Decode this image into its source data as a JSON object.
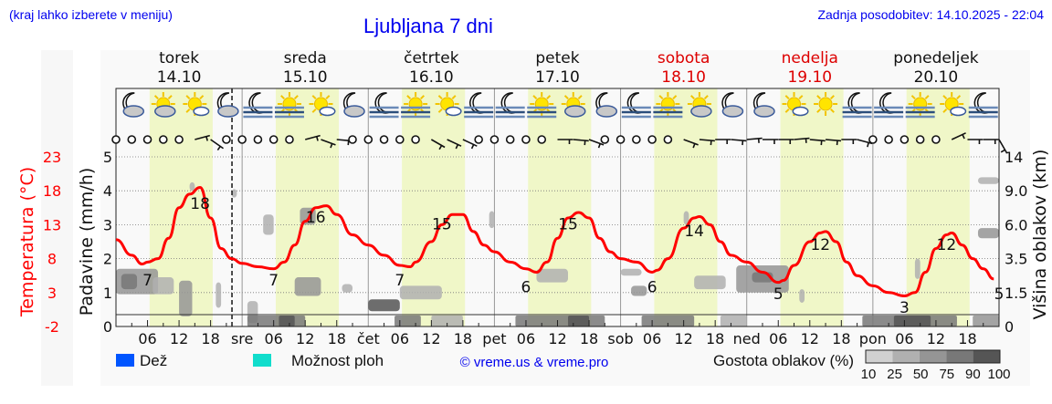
{
  "header": {
    "hint": "(kraj lahko izberete v meniju)",
    "title": "Ljubljana 7 dni",
    "updated": "Zadnja posodobitev: 14.10.2025 - 22:04"
  },
  "colors": {
    "temperature": "#ff0000",
    "daylight": "#f0f7c8",
    "rain": "#0055ff",
    "showers": "#11ddcc",
    "weekend": "#dd0000",
    "link": "#0000ee"
  },
  "legend": {
    "rain": "Dež",
    "showers": "Možnost ploh",
    "copyright": "© vreme.us & vreme.pro",
    "cloud_density_title": "Gostota oblakov (%)",
    "cloud_density_levels": [
      "10",
      "25",
      "50",
      "75",
      "90",
      "100"
    ],
    "cloud_density_colors": [
      "#d0d0d0",
      "#b0b0b0",
      "#959595",
      "#787878",
      "#555555"
    ]
  },
  "chart_data": {
    "type": "line",
    "days": [
      {
        "name": "torek",
        "date": "14.10",
        "weekend": false,
        "abbr": ""
      },
      {
        "name": "sreda",
        "date": "15.10",
        "weekend": false,
        "abbr": "sre"
      },
      {
        "name": "četrtek",
        "date": "16.10",
        "weekend": false,
        "abbr": "čet"
      },
      {
        "name": "petek",
        "date": "17.10",
        "weekend": false,
        "abbr": "pet"
      },
      {
        "name": "sobota",
        "date": "18.10",
        "weekend": true,
        "abbr": "sob"
      },
      {
        "name": "nedelja",
        "date": "19.10",
        "weekend": true,
        "abbr": "ned"
      },
      {
        "name": "ponedeljek",
        "date": "20.10",
        "weekend": false,
        "abbr": "pon"
      }
    ],
    "hour_ticks": [
      "06",
      "12",
      "18"
    ],
    "now_hour": 22.07,
    "left_axis_temperature": {
      "label": "Temperatura (°C)",
      "ticks": [
        "23",
        "18",
        "13",
        "8",
        "3",
        "-2"
      ],
      "range": [
        -2,
        23
      ]
    },
    "left_axis_precip": {
      "label": "Padavine (mm/h)",
      "ticks": [
        "5",
        "4",
        "3",
        "2",
        "1",
        "0"
      ],
      "range": [
        0,
        5
      ]
    },
    "right_axis_cloud": {
      "label": "Višina oblakov (km)",
      "ticks": [
        "14",
        "9.0",
        "6.0",
        "3.5",
        "1.5",
        "0"
      ]
    },
    "temperature_series": {
      "hours": [
        0,
        3,
        5,
        6,
        8,
        10,
        12,
        14,
        16,
        18,
        20,
        22,
        24,
        27,
        30,
        32,
        34,
        36,
        38,
        40,
        42,
        45,
        48,
        51,
        54,
        56,
        57,
        60,
        62,
        64,
        66,
        68,
        70,
        72,
        75,
        78,
        80,
        82,
        84,
        86,
        88,
        90,
        92,
        94,
        96,
        99,
        102,
        103,
        105,
        108,
        110,
        111,
        113,
        115,
        117,
        120,
        123,
        126,
        127,
        129,
        132,
        134,
        135,
        137,
        139,
        141,
        144,
        147,
        150,
        152,
        154,
        156,
        158,
        159,
        161,
        163,
        165,
        167
      ],
      "values": [
        10.8,
        8.5,
        7.2,
        7.5,
        8,
        11,
        15.5,
        17.5,
        18.5,
        14,
        9.5,
        8,
        7.3,
        6.8,
        6.5,
        7.5,
        10,
        13.5,
        15.5,
        15.8,
        14.5,
        11.5,
        10,
        8.5,
        7,
        6.8,
        7.5,
        10.5,
        13,
        14.5,
        14.5,
        12,
        10,
        9,
        7.5,
        6.5,
        6,
        7.5,
        11,
        14,
        14.8,
        14,
        11,
        9,
        8,
        7.5,
        6,
        6.3,
        8,
        12.5,
        14,
        14.2,
        13,
        10.5,
        8.5,
        7.5,
        6,
        4.5,
        4.8,
        7,
        10.5,
        11.8,
        12,
        10.5,
        7.5,
        5.5,
        4,
        3,
        2.5,
        3,
        6,
        9.5,
        11.5,
        11.8,
        10,
        8,
        6.5,
        5
      ]
    },
    "temperature_labels": [
      {
        "h": 6,
        "t": "7"
      },
      {
        "h": 16,
        "t": "18"
      },
      {
        "h": 30,
        "t": "7"
      },
      {
        "h": 38,
        "t": "16"
      },
      {
        "h": 54,
        "t": "7"
      },
      {
        "h": 62,
        "t": "15"
      },
      {
        "h": 78,
        "t": "6"
      },
      {
        "h": 86,
        "t": "15"
      },
      {
        "h": 102,
        "t": "6"
      },
      {
        "h": 110,
        "t": "14"
      },
      {
        "h": 126,
        "t": "5"
      },
      {
        "h": 134,
        "t": "12"
      },
      {
        "h": 150,
        "t": "3"
      },
      {
        "h": 158,
        "t": "12"
      },
      {
        "h": 168,
        "t": "5"
      }
    ],
    "daylight": {
      "start_hour": 6.4,
      "end_hour": 18.4
    },
    "weather_icons": [
      "moon-cloud",
      "sun-cloud",
      "sun-small-cloud",
      "moon-cloud",
      "moon-fog",
      "sun-fog",
      "sun-small-cloud",
      "moon-cloud",
      "moon-fog",
      "sun-fog",
      "sun-small-cloud",
      "moon-fog",
      "moon-fog",
      "sun-fog",
      "sun-cloud",
      "moon-cloud",
      "moon-fog",
      "sun-fog",
      "sun-cloud",
      "moon-cloud",
      "moon-cloud",
      "sun-small-cloud",
      "sun",
      "moon-fog",
      "moon-fog",
      "sun-fog",
      "sun-small-cloud",
      "moon-fog"
    ],
    "wind_3h": [
      "calm",
      "calm",
      "calm",
      "calm",
      "calm",
      -15,
      35,
      "calm",
      "calm",
      "calm",
      "calm",
      "calm",
      -15,
      20,
      5,
      "calm",
      "calm",
      "calm",
      "calm",
      "calm",
      30,
      25,
      25,
      "calm",
      "calm",
      "calm",
      "calm",
      "calm",
      0,
      5,
      20,
      "calm",
      "calm",
      "calm",
      "calm",
      "calm",
      20,
      5,
      0,
      5,
      -5,
      0,
      0,
      -5,
      5,
      5,
      0,
      15,
      "calm",
      "calm",
      "calm",
      "calm",
      "calm",
      -25,
      0,
      0,
      60
    ],
    "cloud_patches": [
      {
        "h0": 0,
        "h1": 8,
        "c0": 0.95,
        "c1": 1.7,
        "density": 50
      },
      {
        "h0": 1,
        "h1": 4,
        "c0": 1.1,
        "c1": 1.55,
        "density": 75
      },
      {
        "h0": 7,
        "h1": 11,
        "c0": 0.95,
        "c1": 1.45,
        "density": 25
      },
      {
        "h0": 12,
        "h1": 14.5,
        "c0": 0.3,
        "c1": 1.35,
        "density": 50
      },
      {
        "h0": 14,
        "h1": 15,
        "c0": 4.0,
        "c1": 4.25,
        "density": 25
      },
      {
        "h0": 19,
        "h1": 20,
        "c0": 0.55,
        "c1": 1.3,
        "density": 25
      },
      {
        "h0": 22,
        "h1": 23,
        "c0": 3.8,
        "c1": 4.05,
        "density": 25
      },
      {
        "h0": 25,
        "h1": 27,
        "c0": 0.1,
        "c1": 0.75,
        "density": 25
      },
      {
        "h0": 28,
        "h1": 30,
        "c0": 2.7,
        "c1": 3.3,
        "density": 25
      },
      {
        "h0": 34,
        "h1": 39,
        "c0": 0.9,
        "c1": 1.45,
        "density": 50
      },
      {
        "h0": 35,
        "h1": 38,
        "c0": 3.0,
        "c1": 3.5,
        "density": 50
      },
      {
        "h0": 43,
        "h1": 45,
        "c0": 1.0,
        "c1": 1.25,
        "density": 25
      },
      {
        "h0": 48,
        "h1": 54,
        "c0": 0.45,
        "c1": 0.8,
        "density": 90
      },
      {
        "h0": 54,
        "h1": 62,
        "c0": 0.8,
        "c1": 1.2,
        "density": 25
      },
      {
        "h0": 71,
        "h1": 72,
        "c0": 2.9,
        "c1": 3.4,
        "density": 25
      },
      {
        "h0": 80,
        "h1": 86,
        "c0": 1.3,
        "c1": 1.7,
        "density": 25
      },
      {
        "h0": 96,
        "h1": 100,
        "c0": 1.5,
        "c1": 1.7,
        "density": 25
      },
      {
        "h0": 98,
        "h1": 101,
        "c0": 0.9,
        "c1": 1.2,
        "density": 50
      },
      {
        "h0": 108,
        "h1": 109,
        "c0": 3.0,
        "c1": 3.4,
        "density": 25
      },
      {
        "h0": 110,
        "h1": 116,
        "c0": 1.1,
        "c1": 1.5,
        "density": 25
      },
      {
        "h0": 118,
        "h1": 128,
        "c0": 1.0,
        "c1": 1.8,
        "density": 50
      },
      {
        "h0": 121,
        "h1": 125,
        "c0": 1.3,
        "c1": 1.6,
        "density": 75
      },
      {
        "h0": 130,
        "h1": 131,
        "c0": 0.7,
        "c1": 1.1,
        "density": 25
      },
      {
        "h0": 152,
        "h1": 153,
        "c0": 1.4,
        "c1": 2.0,
        "density": 25
      },
      {
        "h0": 164,
        "h1": 168,
        "c0": 2.6,
        "c1": 2.9,
        "density": 50
      },
      {
        "h0": 164,
        "h1": 168,
        "c0": 4.2,
        "c1": 4.4,
        "density": 25
      }
    ],
    "low_cloud_patches": [
      {
        "h0": 25,
        "h1": 36,
        "density": 75
      },
      {
        "h0": 31,
        "h1": 34,
        "density": 90
      },
      {
        "h0": 53,
        "h1": 58,
        "density": 75
      },
      {
        "h0": 60,
        "h1": 66,
        "density": 25
      },
      {
        "h0": 76,
        "h1": 93,
        "density": 75
      },
      {
        "h0": 86,
        "h1": 90,
        "density": 90
      },
      {
        "h0": 100,
        "h1": 110,
        "density": 75
      },
      {
        "h0": 115,
        "h1": 120,
        "density": 25
      },
      {
        "h0": 142,
        "h1": 160,
        "density": 75
      },
      {
        "h0": 148,
        "h1": 155,
        "density": 90
      },
      {
        "h0": 163,
        "h1": 168,
        "density": 50
      }
    ]
  }
}
